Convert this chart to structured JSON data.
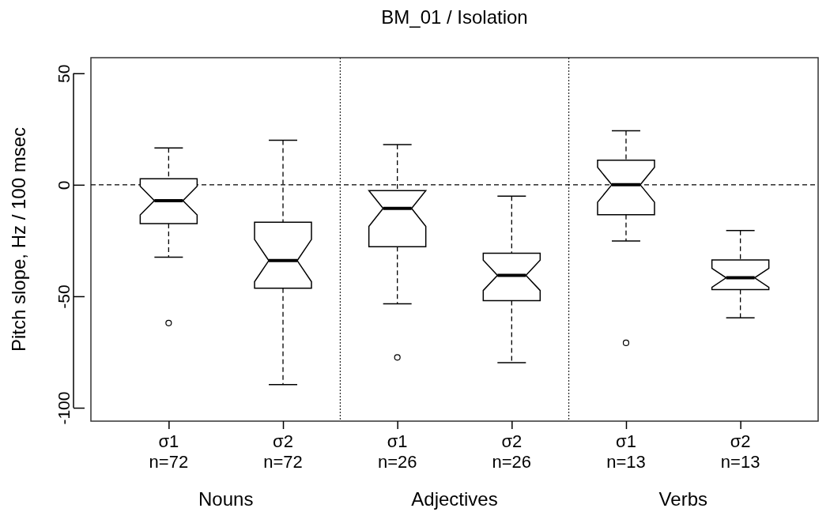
{
  "chart_data": {
    "type": "box",
    "title": "BM_01  /  Isolation",
    "ylabel": "Pitch slope,  Hz / 100 msec",
    "categories": [
      "σ1\nn=72",
      "σ2\nn=72",
      "σ1\nn=26",
      "σ2\nn=26",
      "σ1\nn=13",
      "σ2\nn=13"
    ],
    "boxes": [
      {
        "low": -32.5,
        "q1": -17.4,
        "median": -7.1,
        "q3": 2.7,
        "high": 16.5,
        "outliers": [
          -62
        ]
      },
      {
        "low": -89.6,
        "q1": -46.4,
        "median": -34,
        "q3": -16.8,
        "high": 20
      },
      {
        "low": -53.4,
        "q1": -27.8,
        "median": -10.6,
        "q3": -2.6,
        "high": 18,
        "outliers": [
          -77.4
        ]
      },
      {
        "low": -79.8,
        "q1": -52,
        "median": -40.6,
        "q3": -30.7,
        "high": -5.1
      },
      {
        "low": -25.2,
        "q1": -13.4,
        "median": 0,
        "q3": 11,
        "high": 24.2,
        "outliers": [
          -70.9
        ]
      },
      {
        "low": -59.7,
        "q1": -47,
        "median": -41.7,
        "q3": -33.7,
        "high": -20.5
      }
    ],
    "ylim": [
      -106,
      57
    ],
    "yticks": [
      -100,
      -50,
      0,
      50
    ],
    "ref_lines": [
      {
        "axis": "y",
        "value": 0,
        "line_style": "dashed"
      }
    ],
    "annotations": [
      "Nouns",
      "Adjectives",
      "Verbs"
    ]
  }
}
